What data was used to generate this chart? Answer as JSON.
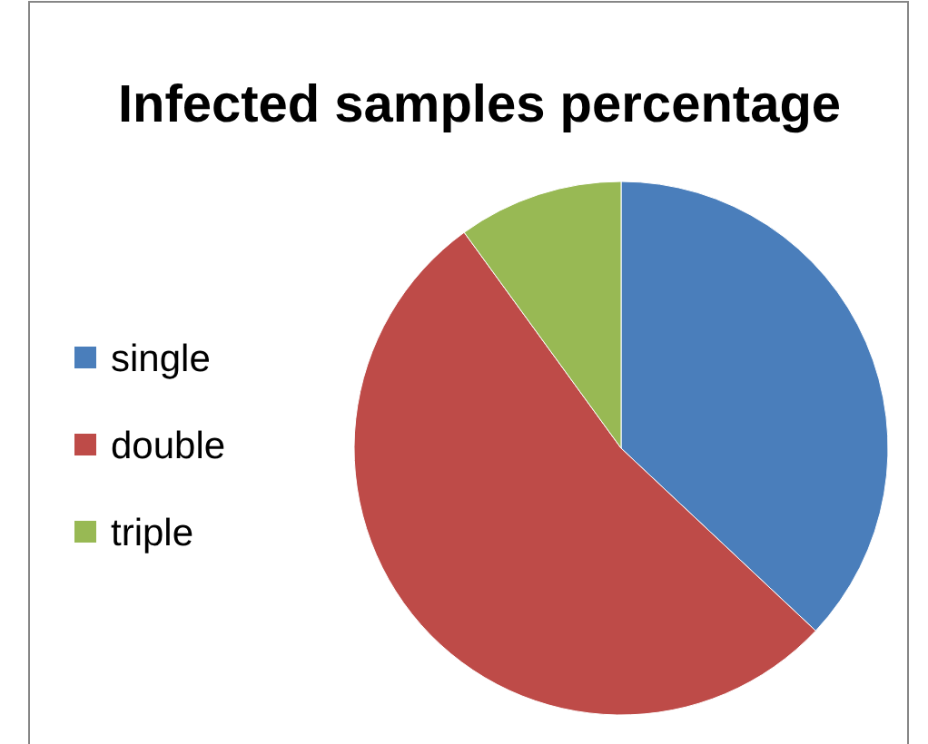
{
  "chart_data": {
    "type": "pie",
    "title": "Infected samples percentage",
    "categories": [
      "single",
      "double",
      "triple"
    ],
    "values": [
      37,
      53,
      10
    ],
    "colors": [
      "#4a7ebb",
      "#be4b48",
      "#98b954"
    ],
    "legend": "left"
  }
}
